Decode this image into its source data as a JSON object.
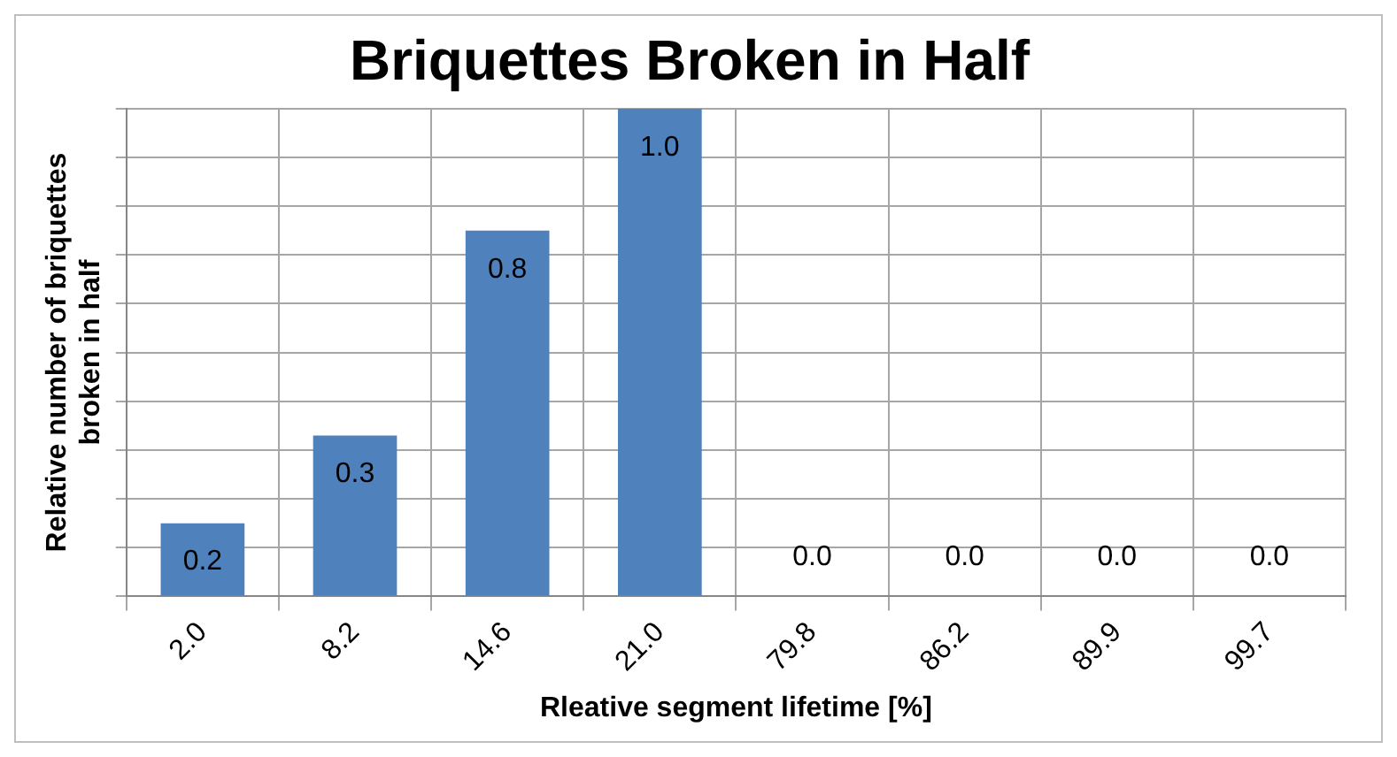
{
  "chart_data": {
    "type": "bar",
    "title": "Briquettes Broken in Half",
    "xlabel": "Rleative segment lifetime [%]",
    "ylabel": "Relative number of briquettes broken in half",
    "categories": [
      "2.0",
      "8.2",
      "14.6",
      "21.0",
      "79.8",
      "86.2",
      "89.9",
      "99.7"
    ],
    "values": [
      0.15,
      0.33,
      0.75,
      1.0,
      0.0,
      0.0,
      0.0,
      0.0
    ],
    "value_labels": [
      "0.2",
      "0.3",
      "0.8",
      "1.0",
      "0.0",
      "0.0",
      "0.0",
      "0.0"
    ],
    "ylim": [
      0,
      1
    ],
    "tick_labels": "x",
    "color": "#4f81bd",
    "grid": true
  }
}
